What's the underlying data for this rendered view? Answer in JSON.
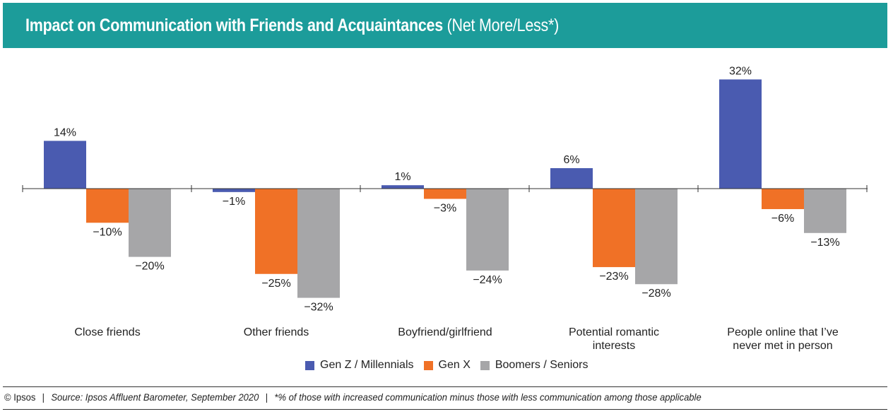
{
  "header": {
    "title": "Impact on Communication with Friends and Acquaintances",
    "subtitle": "(Net More/Less*)"
  },
  "footer": {
    "copyright": "© Ipsos",
    "source": "Source: Ipsos Affluent Barometer, September 2020",
    "note": "*% of those with increased communication minus those with less communication among those applicable"
  },
  "chart_data": {
    "type": "bar",
    "categories": [
      [
        "Close friends"
      ],
      [
        "Other friends"
      ],
      [
        "Boyfriend/girlfriend"
      ],
      [
        "Potential romantic",
        "interests"
      ],
      [
        "People online that I’ve",
        "never met in person"
      ]
    ],
    "series": [
      {
        "name": "Gen Z / Millennials",
        "values": [
          14,
          -1,
          1,
          6,
          32
        ],
        "labels": [
          "14%",
          "−1%",
          "1%",
          "6%",
          "32%"
        ],
        "color": "#4a5bb0"
      },
      {
        "name": "Gen X",
        "values": [
          -10,
          -25,
          -3,
          -23,
          -6
        ],
        "labels": [
          "−10%",
          "−25%",
          "−3%",
          "−23%",
          "−6%"
        ],
        "color": "#f07126"
      },
      {
        "name": "Boomers / Seniors",
        "values": [
          -20,
          -32,
          -24,
          -28,
          -13
        ],
        "labels": [
          "−20%",
          "−32%",
          "−24%",
          "−28%",
          "−13%"
        ],
        "color": "#a6a6a8"
      }
    ],
    "legend_position": "bottom",
    "grid": false
  }
}
